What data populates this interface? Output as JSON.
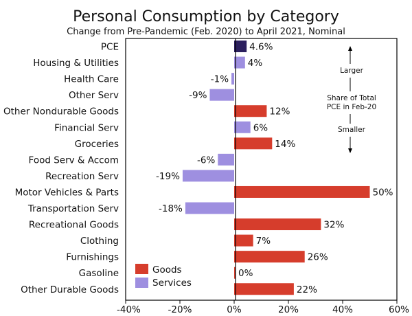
{
  "chart_data": {
    "type": "bar",
    "orientation": "horizontal",
    "title": "Personal Consumption by Category",
    "subtitle": "Change from Pre-Pandemic (Feb. 2020) to April 2021, Nominal",
    "categories": [
      "PCE",
      "Housing & Utilities",
      "Health Care",
      "Other Serv",
      "Other Nondurable Goods",
      "Financial Serv",
      "Groceries",
      "Food Serv & Accom",
      "Recreation Serv",
      "Motor Vehicles & Parts",
      "Transportation Serv",
      "Recreational Goods",
      "Clothing",
      "Furnishings",
      "Gasoline",
      "Other Durable Goods"
    ],
    "values": [
      4.6,
      4,
      -1,
      -9,
      12,
      6,
      14,
      -6,
      -19,
      50,
      -18,
      32,
      7,
      26,
      0,
      22
    ],
    "value_labels": [
      "4.6%",
      "4%",
      "-1%",
      "-9%",
      "12%",
      "6%",
      "14%",
      "-6%",
      "-19%",
      "50%",
      "-18%",
      "32%",
      "7%",
      "26%",
      "0%",
      "22%"
    ],
    "groups": [
      "total",
      "services",
      "services",
      "services",
      "goods",
      "services",
      "goods",
      "services",
      "services",
      "goods",
      "services",
      "goods",
      "goods",
      "goods",
      "goods",
      "goods"
    ],
    "colors": {
      "goods": "#d63d2c",
      "services": "#9e8fe0",
      "total": "#2b1f5e"
    },
    "legend": [
      {
        "name": "Goods",
        "group": "goods"
      },
      {
        "name": "Services",
        "group": "services"
      }
    ],
    "legend_position": "bottom-left",
    "xlim": [
      -40,
      60
    ],
    "xticks": [
      -40,
      -20,
      0,
      20,
      40,
      60
    ],
    "xtick_labels": [
      "-40%",
      "-20%",
      "0%",
      "20%",
      "40%",
      "60%"
    ],
    "grid": false,
    "annotation": {
      "top": "Larger",
      "middle_line1": "Share of Total",
      "middle_line2": "PCE in Feb-20",
      "bottom": "Smaller"
    }
  }
}
